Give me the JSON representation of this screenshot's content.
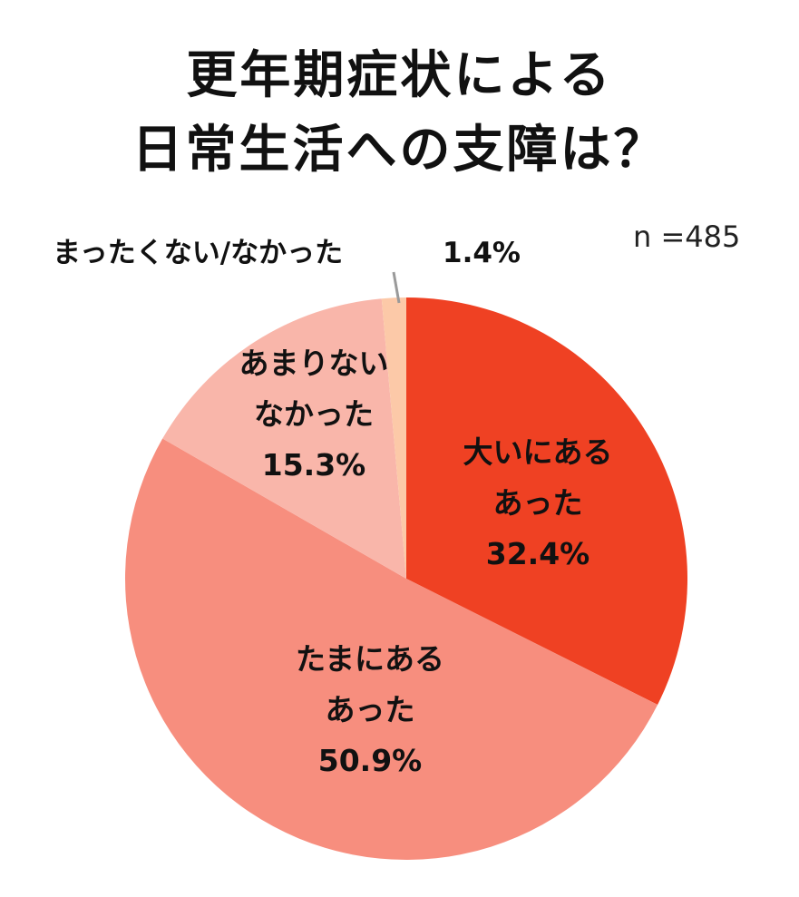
{
  "title": [
    "更年期症状による",
    "日常生活への支障は？"
  ],
  "sample_size": "n =485",
  "chart_data": {
    "type": "pie",
    "start_angle_deg": 0,
    "direction": "clockwise",
    "slices": [
      {
        "label_lines": [
          "大いにある",
          "あった"
        ],
        "value": 32.4,
        "value_label": "32.4%",
        "color": "#EF4123"
      },
      {
        "label_lines": [
          "たまにある",
          "あった"
        ],
        "value": 50.9,
        "value_label": "50.9%",
        "color": "#F78E7E"
      },
      {
        "label_lines": [
          "あまりない",
          "なかった"
        ],
        "value": 15.3,
        "value_label": "15.3%",
        "color": "#F9B6AA"
      },
      {
        "label_lines": [
          "まったくない/なかった"
        ],
        "value": 1.4,
        "value_label": "1.4%",
        "color": "#FCC9A8"
      }
    ]
  }
}
